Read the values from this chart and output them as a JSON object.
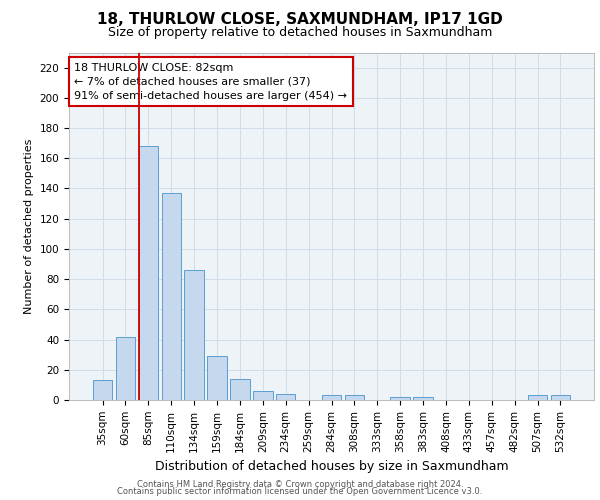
{
  "title_line1": "18, THURLOW CLOSE, SAXMUNDHAM, IP17 1GD",
  "title_line2": "Size of property relative to detached houses in Saxmundham",
  "xlabel": "Distribution of detached houses by size in Saxmundham",
  "ylabel": "Number of detached properties",
  "footer_line1": "Contains HM Land Registry data © Crown copyright and database right 2024.",
  "footer_line2": "Contains public sector information licensed under the Open Government Licence v3.0.",
  "annotation_title": "18 THURLOW CLOSE: 82sqm",
  "annotation_line1": "← 7% of detached houses are smaller (37)",
  "annotation_line2": "91% of semi-detached houses are larger (454) →",
  "bar_labels": [
    "35sqm",
    "60sqm",
    "85sqm",
    "110sqm",
    "134sqm",
    "159sqm",
    "184sqm",
    "209sqm",
    "234sqm",
    "259sqm",
    "284sqm",
    "308sqm",
    "333sqm",
    "358sqm",
    "383sqm",
    "408sqm",
    "433sqm",
    "457sqm",
    "482sqm",
    "507sqm",
    "532sqm"
  ],
  "bar_values": [
    13,
    42,
    168,
    137,
    86,
    29,
    14,
    6,
    4,
    0,
    3,
    3,
    0,
    2,
    2,
    0,
    0,
    0,
    0,
    3,
    3
  ],
  "bar_color": "#c5d8ed",
  "bar_edge_color": "#5a9fd4",
  "grid_color": "#d0dde8",
  "background_color": "#eef3f8",
  "red_line_index": 2,
  "annotation_box_color": "#ffffff",
  "annotation_box_edge": "#cc0000",
  "ylim": [
    0,
    230
  ],
  "yticks": [
    0,
    20,
    40,
    60,
    80,
    100,
    120,
    140,
    160,
    180,
    200,
    220
  ],
  "title_fontsize": 11,
  "subtitle_fontsize": 9,
  "ylabel_fontsize": 8,
  "xlabel_fontsize": 9,
  "tick_fontsize": 7.5,
  "ann_fontsize": 8,
  "footer_fontsize": 6
}
